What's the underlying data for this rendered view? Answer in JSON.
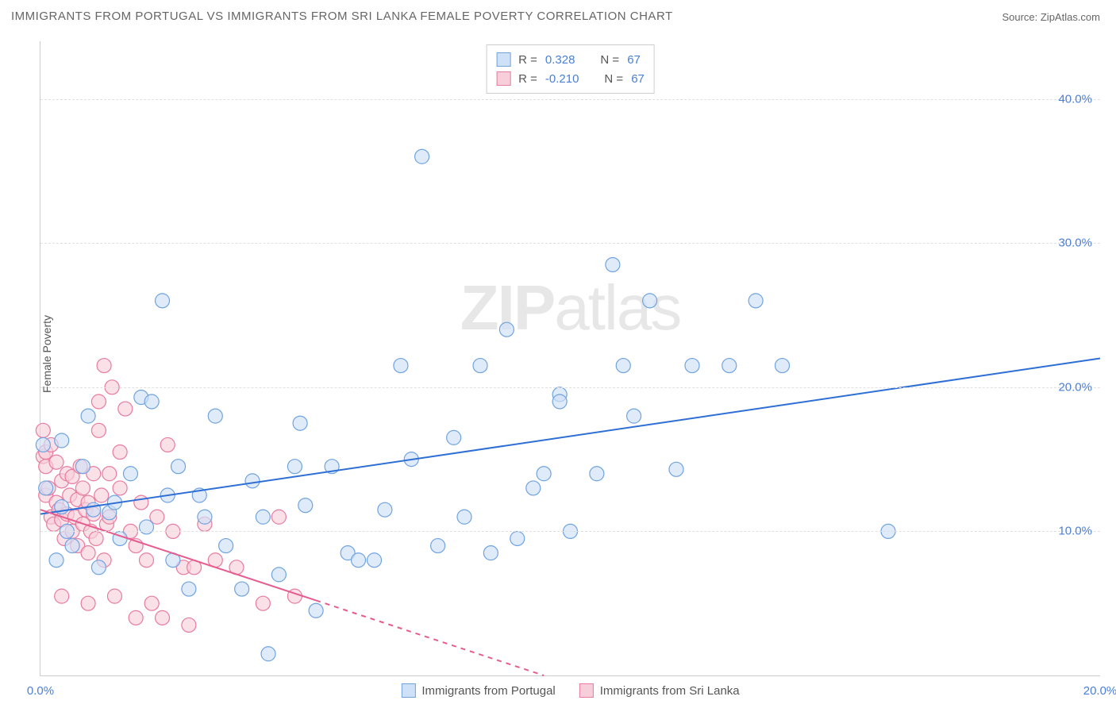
{
  "title": "IMMIGRANTS FROM PORTUGAL VS IMMIGRANTS FROM SRI LANKA FEMALE POVERTY CORRELATION CHART",
  "source_label": "Source: ",
  "source_name": "ZipAtlas.com",
  "ylabel": "Female Poverty",
  "watermark": {
    "bold": "ZIP",
    "rest": "atlas"
  },
  "chart": {
    "type": "scatter",
    "background_color": "#ffffff",
    "grid_color": "#e0e0e0",
    "axis_color": "#cccccc",
    "tick_color": "#4a7fd8",
    "ylim": [
      0,
      44
    ],
    "xlim": [
      0,
      20
    ],
    "yticks": [
      10,
      20,
      30,
      40
    ],
    "ytick_labels": [
      "10.0%",
      "20.0%",
      "30.0%",
      "40.0%"
    ],
    "xticks": [
      0,
      20
    ],
    "xtick_labels": [
      "0.0%",
      "20.0%"
    ],
    "marker_radius": 9,
    "marker_stroke_width": 1.2,
    "series": [
      {
        "name": "Immigrants from Portugal",
        "fill": "#cfe1f7",
        "stroke": "#6fa3e0",
        "fill_opacity": 0.65,
        "r_value": "0.328",
        "n_value": "67",
        "trend": {
          "x1": 0,
          "y1": 11.2,
          "x2": 20,
          "y2": 22.0,
          "color": "#2e6fd6",
          "width": 2,
          "solid_until_x": 20
        },
        "points": [
          [
            0.4,
            11.7
          ],
          [
            0.4,
            16.3
          ],
          [
            0.5,
            10.0
          ],
          [
            0.8,
            14.5
          ],
          [
            0.9,
            18.0
          ],
          [
            1.0,
            11.5
          ],
          [
            1.1,
            7.5
          ],
          [
            1.3,
            11.3
          ],
          [
            1.4,
            12.0
          ],
          [
            1.5,
            9.5
          ],
          [
            1.7,
            14.0
          ],
          [
            1.9,
            19.3
          ],
          [
            2.0,
            10.3
          ],
          [
            2.1,
            19.0
          ],
          [
            2.3,
            26.0
          ],
          [
            2.4,
            12.5
          ],
          [
            2.5,
            8.0
          ],
          [
            2.6,
            14.5
          ],
          [
            2.8,
            6.0
          ],
          [
            3.0,
            12.5
          ],
          [
            3.1,
            11.0
          ],
          [
            3.3,
            18.0
          ],
          [
            3.5,
            9.0
          ],
          [
            3.8,
            6.0
          ],
          [
            4.0,
            13.5
          ],
          [
            4.2,
            11.0
          ],
          [
            4.3,
            1.5
          ],
          [
            4.5,
            7.0
          ],
          [
            4.8,
            14.5
          ],
          [
            4.9,
            17.5
          ],
          [
            5.0,
            11.8
          ],
          [
            5.2,
            4.5
          ],
          [
            5.5,
            14.5
          ],
          [
            5.8,
            8.5
          ],
          [
            6.0,
            8.0
          ],
          [
            6.3,
            8.0
          ],
          [
            6.5,
            11.5
          ],
          [
            6.8,
            21.5
          ],
          [
            7.0,
            15.0
          ],
          [
            7.2,
            36.0
          ],
          [
            7.5,
            9.0
          ],
          [
            7.8,
            16.5
          ],
          [
            8.0,
            11.0
          ],
          [
            8.3,
            21.5
          ],
          [
            8.5,
            8.5
          ],
          [
            8.8,
            24.0
          ],
          [
            9.0,
            9.5
          ],
          [
            9.3,
            13.0
          ],
          [
            9.5,
            14.0
          ],
          [
            9.8,
            19.5
          ],
          [
            9.8,
            19.0
          ],
          [
            10.0,
            10.0
          ],
          [
            10.5,
            14.0
          ],
          [
            10.8,
            28.5
          ],
          [
            11.0,
            21.5
          ],
          [
            11.2,
            18.0
          ],
          [
            11.5,
            26.0
          ],
          [
            12.0,
            14.3
          ],
          [
            12.3,
            21.5
          ],
          [
            13.0,
            21.5
          ],
          [
            13.5,
            26.0
          ],
          [
            14.0,
            21.5
          ],
          [
            16.0,
            10.0
          ],
          [
            0.05,
            16.0
          ],
          [
            0.1,
            13.0
          ],
          [
            0.3,
            8.0
          ],
          [
            0.6,
            9.0
          ]
        ]
      },
      {
        "name": "Immigrants from Sri Lanka",
        "fill": "#f7cfda",
        "stroke": "#e87ba0",
        "fill_opacity": 0.65,
        "r_value": "-0.210",
        "n_value": "67",
        "trend": {
          "x1": 0,
          "y1": 11.5,
          "x2": 9.5,
          "y2": 0,
          "color": "#e65c8f",
          "width": 2,
          "solid_until_x": 5.2
        },
        "points": [
          [
            0.05,
            17.0
          ],
          [
            0.05,
            15.2
          ],
          [
            0.1,
            15.5
          ],
          [
            0.1,
            14.5
          ],
          [
            0.1,
            12.5
          ],
          [
            0.15,
            13.0
          ],
          [
            0.2,
            11.0
          ],
          [
            0.2,
            16.0
          ],
          [
            0.25,
            10.5
          ],
          [
            0.3,
            12.0
          ],
          [
            0.3,
            14.8
          ],
          [
            0.35,
            11.5
          ],
          [
            0.4,
            10.8
          ],
          [
            0.4,
            13.5
          ],
          [
            0.45,
            9.5
          ],
          [
            0.5,
            11.2
          ],
          [
            0.5,
            14.0
          ],
          [
            0.55,
            12.5
          ],
          [
            0.6,
            10.0
          ],
          [
            0.6,
            13.8
          ],
          [
            0.65,
            11.0
          ],
          [
            0.7,
            9.0
          ],
          [
            0.7,
            12.2
          ],
          [
            0.75,
            14.5
          ],
          [
            0.8,
            10.5
          ],
          [
            0.8,
            13.0
          ],
          [
            0.85,
            11.5
          ],
          [
            0.9,
            8.5
          ],
          [
            0.9,
            12.0
          ],
          [
            0.95,
            10.0
          ],
          [
            1.0,
            14.0
          ],
          [
            1.0,
            11.2
          ],
          [
            1.05,
            9.5
          ],
          [
            1.1,
            17.0
          ],
          [
            1.1,
            19.0
          ],
          [
            1.15,
            12.5
          ],
          [
            1.2,
            8.0
          ],
          [
            1.2,
            21.5
          ],
          [
            1.25,
            10.5
          ],
          [
            1.3,
            14.0
          ],
          [
            1.3,
            11.0
          ],
          [
            1.35,
            20.0
          ],
          [
            1.4,
            5.5
          ],
          [
            1.5,
            13.0
          ],
          [
            1.5,
            15.5
          ],
          [
            1.6,
            18.5
          ],
          [
            1.7,
            10.0
          ],
          [
            1.8,
            4.0
          ],
          [
            1.8,
            9.0
          ],
          [
            1.9,
            12.0
          ],
          [
            2.0,
            8.0
          ],
          [
            2.1,
            5.0
          ],
          [
            2.2,
            11.0
          ],
          [
            2.3,
            4.0
          ],
          [
            2.4,
            16.0
          ],
          [
            2.5,
            10.0
          ],
          [
            2.7,
            7.5
          ],
          [
            2.8,
            3.5
          ],
          [
            2.9,
            7.5
          ],
          [
            3.1,
            10.5
          ],
          [
            3.3,
            8.0
          ],
          [
            3.7,
            7.5
          ],
          [
            4.2,
            5.0
          ],
          [
            4.5,
            11.0
          ],
          [
            4.8,
            5.5
          ],
          [
            0.4,
            5.5
          ],
          [
            0.9,
            5.0
          ]
        ]
      }
    ]
  },
  "legend_top": {
    "r_label": "R =",
    "n_label": "N ="
  },
  "legend_bottom_items": [
    {
      "label": "Immigrants from Portugal",
      "fill": "#cfe1f7",
      "stroke": "#6fa3e0"
    },
    {
      "label": "Immigrants from Sri Lanka",
      "fill": "#f7cfda",
      "stroke": "#e87ba0"
    }
  ]
}
